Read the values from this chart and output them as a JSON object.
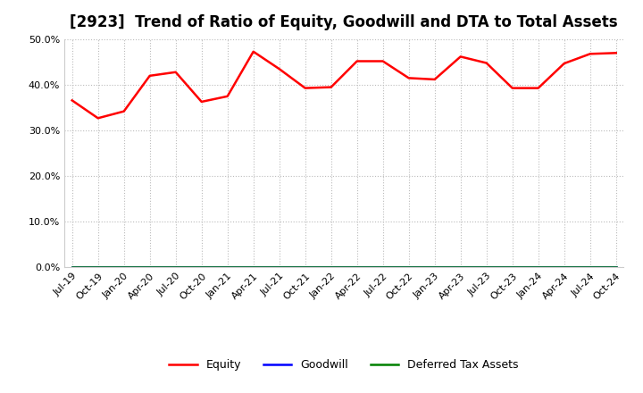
{
  "title": "[2923]  Trend of Ratio of Equity, Goodwill and DTA to Total Assets",
  "x_labels": [
    "Jul-19",
    "Oct-19",
    "Jan-20",
    "Apr-20",
    "Jul-20",
    "Oct-20",
    "Jan-21",
    "Apr-21",
    "Jul-21",
    "Oct-21",
    "Jan-22",
    "Apr-22",
    "Jul-22",
    "Oct-22",
    "Jan-23",
    "Apr-23",
    "Jul-23",
    "Oct-23",
    "Jan-24",
    "Apr-24",
    "Jul-24",
    "Oct-24"
  ],
  "equity": [
    0.366,
    0.327,
    0.342,
    0.42,
    0.428,
    0.363,
    0.375,
    0.473,
    0.435,
    0.393,
    0.395,
    0.452,
    0.452,
    0.415,
    0.412,
    0.462,
    0.448,
    0.393,
    0.393,
    0.447,
    0.468,
    0.47
  ],
  "goodwill": [
    0.0,
    0.0,
    0.0,
    0.0,
    0.0,
    0.0,
    0.0,
    0.0,
    0.0,
    0.0,
    0.0,
    0.0,
    0.0,
    0.0,
    0.0,
    0.0,
    0.0,
    0.0,
    0.0,
    0.0,
    0.0,
    0.0
  ],
  "dta": [
    0.0,
    0.0,
    0.0,
    0.0,
    0.0,
    0.0,
    0.0,
    0.0,
    0.0,
    0.0,
    0.0,
    0.0,
    0.0,
    0.0,
    0.0,
    0.0,
    0.0,
    0.0,
    0.0,
    0.0,
    0.0,
    0.0
  ],
  "equity_color": "#FF0000",
  "goodwill_color": "#0000FF",
  "dta_color": "#008000",
  "ylim_min": 0.0,
  "ylim_max": 0.5,
  "yticks": [
    0.0,
    0.1,
    0.2,
    0.3,
    0.4,
    0.5
  ],
  "background_color": "#FFFFFF",
  "plot_bg_color": "#FFFFFF",
  "grid_color": "#BBBBBB",
  "title_fontsize": 12,
  "legend_fontsize": 9,
  "tick_fontsize": 8,
  "line_width": 1.8
}
